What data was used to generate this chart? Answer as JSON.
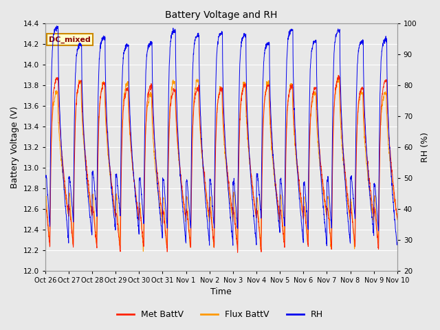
{
  "title": "Battery Voltage and RH",
  "xlabel": "Time",
  "ylabel_left": "Battery Voltage (V)",
  "ylabel_right": "RH (%)",
  "annotation": "DC_mixed",
  "annotation_facecolor": "#FFFFCC",
  "annotation_edgecolor": "#CC8800",
  "annotation_textcolor": "#880000",
  "ylim_left": [
    12.0,
    14.4
  ],
  "ylim_right": [
    20,
    100
  ],
  "yticks_left": [
    12.0,
    12.2,
    12.4,
    12.6,
    12.8,
    13.0,
    13.2,
    13.4,
    13.6,
    13.8,
    14.0,
    14.2,
    14.4
  ],
  "yticks_right": [
    20,
    30,
    40,
    50,
    60,
    70,
    80,
    90,
    100
  ],
  "xtick_labels": [
    "Oct 26",
    "Oct 27",
    "Oct 28",
    "Oct 29",
    "Oct 30",
    "Oct 31",
    "Nov 1",
    "Nov 2",
    "Nov 3",
    "Nov 4",
    "Nov 5",
    "Nov 6",
    "Nov 7",
    "Nov 8",
    "Nov 9",
    "Nov 10"
  ],
  "background_color": "#E8E8E8",
  "plot_bg_color": "#E8E8E8",
  "grid_color": "#FFFFFF",
  "color_met": "#FF2200",
  "color_flux": "#FF9900",
  "color_rh": "#0000EE",
  "legend_labels": [
    "Met BattV",
    "Flux BattV",
    "RH"
  ],
  "n_days": 15
}
